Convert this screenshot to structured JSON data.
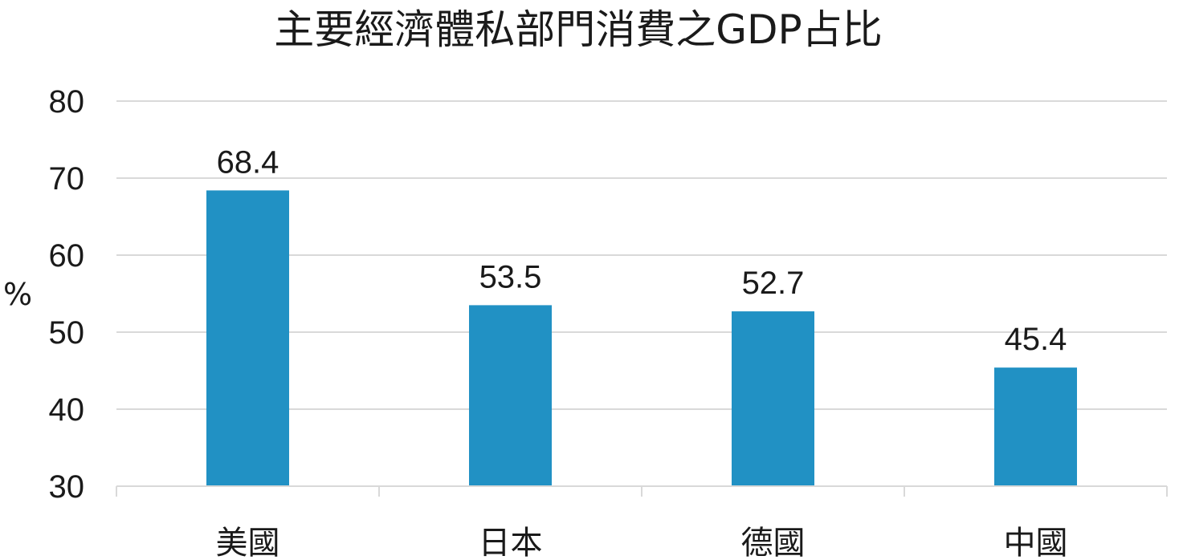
{
  "chart_data": {
    "type": "bar",
    "title": "主要經濟體私部門消費之GDP占比",
    "ylabel": "%",
    "xlabel": "",
    "categories": [
      "美國",
      "日本",
      "德國",
      "中國"
    ],
    "values": [
      68.4,
      53.5,
      52.7,
      45.4
    ],
    "value_labels": [
      "68.4",
      "53.5",
      "52.7",
      "45.4"
    ],
    "ylim": [
      30,
      80
    ],
    "yticks": [
      30,
      40,
      50,
      60,
      70,
      80
    ],
    "grid": true,
    "legend": "none",
    "bar_color": "#2191c4",
    "grid_color": "#d9d9d9"
  }
}
